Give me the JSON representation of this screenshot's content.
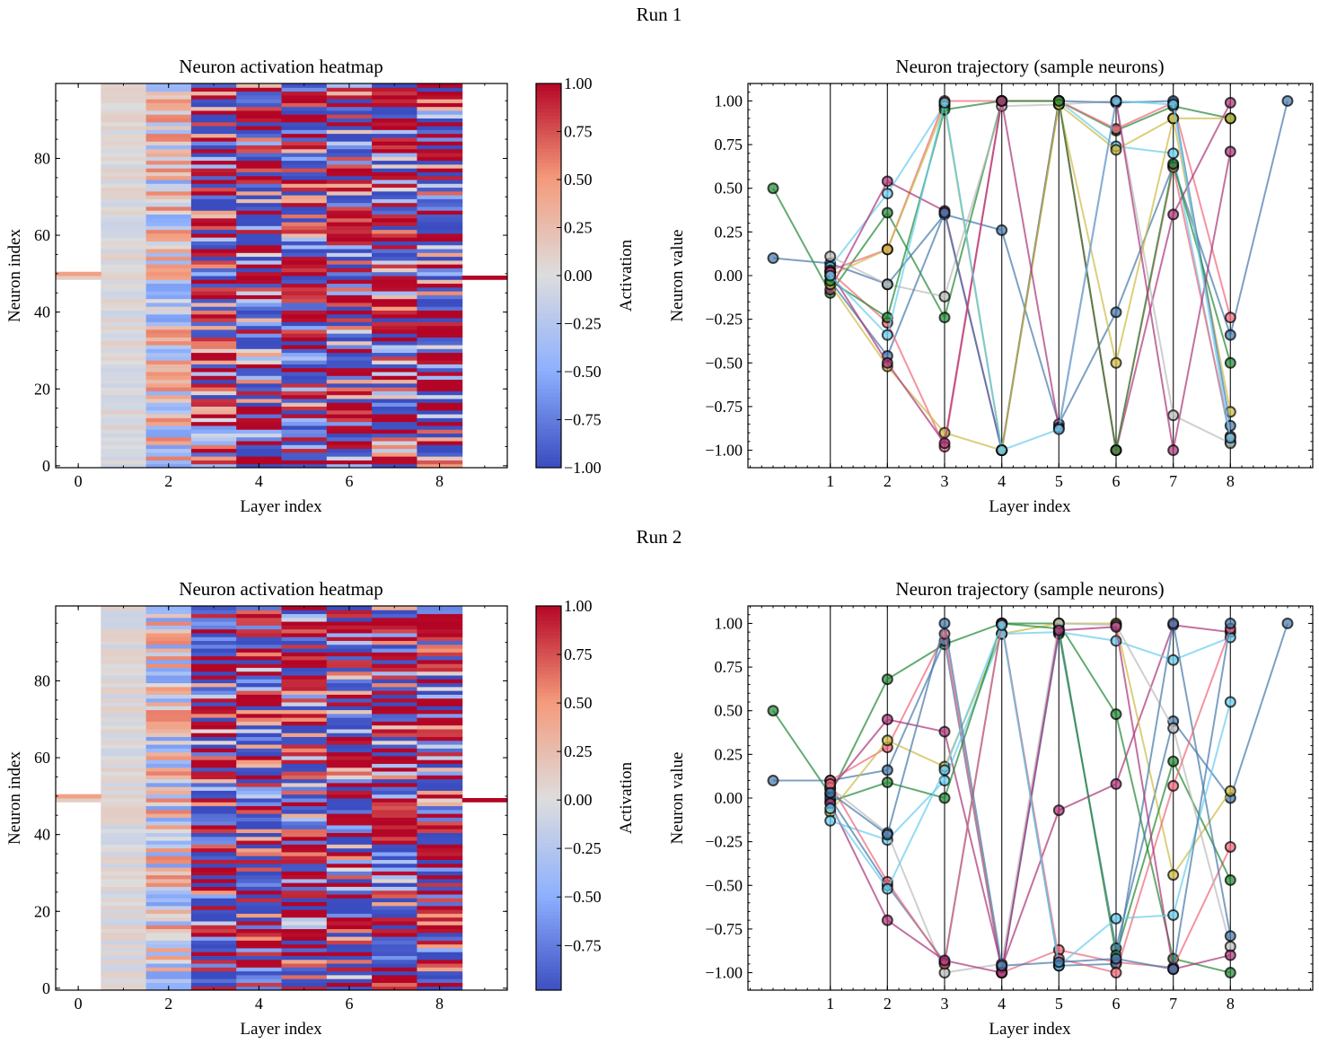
{
  "chart_data": [
    {
      "run_title": "Run 1",
      "heatmap": {
        "type": "heatmap",
        "title": "Neuron activation heatmap",
        "xlabel": "Layer index",
        "ylabel": "Neuron index",
        "colorbar_label": "Activation",
        "colormap": "coolwarm",
        "n_rows": 100,
        "n_cols": 10,
        "xlim": [
          -0.5,
          9.5
        ],
        "ylim": [
          -0.5,
          99.5
        ],
        "xticks": [
          "0",
          "2",
          "4",
          "6",
          "8"
        ],
        "yticks": [
          "0",
          "20",
          "40",
          "60",
          "80"
        ],
        "clim": [
          -1.0,
          1.0
        ],
        "cbar_ticks": [
          "1.00",
          "0.75",
          "0.50",
          "0.25",
          "0.00",
          "−0.25",
          "−0.50",
          "−0.75",
          "−1.00"
        ],
        "cbar_tick_values": [
          1,
          0.75,
          0.5,
          0.25,
          0,
          -0.25,
          -0.5,
          -0.75,
          -1
        ],
        "column_spread": [
          0,
          0.12,
          0.6,
          1,
          1,
          1,
          1,
          1,
          1,
          0
        ],
        "sparse_cells": [
          {
            "col": 0,
            "row": 49,
            "value": 0.12
          },
          {
            "col": 0,
            "row": 50,
            "value": 0.45
          },
          {
            "col": 9,
            "row": 49,
            "value": 1.0
          }
        ],
        "seed": 11
      },
      "trajectory": {
        "type": "line",
        "title": "Neuron trajectory (sample neurons)",
        "xlabel": "Layer index",
        "ylabel": "Neuron value",
        "xlim": [
          -0.44,
          9.44
        ],
        "ylim": [
          -1.1,
          1.1
        ],
        "xticks": [
          "1",
          "2",
          "3",
          "4",
          "5",
          "6",
          "7",
          "8"
        ],
        "yticks": [
          "1.00",
          "0.75",
          "0.50",
          "0.25",
          "0.00",
          "−0.25",
          "−0.50",
          "−0.75",
          "−1.00"
        ],
        "ytick_values": [
          1,
          0.75,
          0.5,
          0.25,
          0,
          -0.25,
          -0.5,
          -0.75,
          -1
        ],
        "vlines": [
          1,
          2,
          3,
          4,
          5,
          6,
          7,
          8
        ],
        "series": [
          {
            "color": "#228833",
            "values": [
              0.5,
              -0.1,
              0.36,
              -0.24,
              1.0,
              1.0,
              0.83,
              0.97,
              0.9,
              null
            ]
          },
          {
            "color": "#4477AA",
            "values": [
              0.1,
              0.07,
              -0.05,
              0.35,
              0.26,
              -0.85,
              -0.21,
              0.63,
              -0.34,
              1.0
            ]
          },
          {
            "color": "#66CCEE",
            "values": [
              null,
              0.05,
              0.47,
              0.98,
              -1.0,
              1.0,
              0.74,
              0.7,
              -0.95,
              null
            ]
          },
          {
            "color": "#EE6677",
            "values": [
              null,
              0.03,
              0.15,
              1.0,
              1.0,
              1.0,
              0.84,
              0.99,
              -0.24,
              null
            ]
          },
          {
            "color": "#CCBB44",
            "values": [
              null,
              0.0,
              0.15,
              0.97,
              -1.0,
              0.98,
              0.72,
              0.9,
              -0.78,
              null
            ]
          },
          {
            "color": "#AA3377",
            "values": [
              null,
              -0.08,
              0.54,
              0.37,
              -1.0,
              1.0,
              -1.0,
              0.35,
              0.99,
              null
            ]
          },
          {
            "color": "#BBBBBB",
            "values": [
              null,
              0.11,
              -0.05,
              -0.12,
              0.97,
              0.98,
              1.0,
              -0.8,
              -0.96,
              null
            ]
          },
          {
            "color": "#4477AA",
            "values": [
              null,
              -0.03,
              -0.46,
              0.36,
              -1.0,
              1.0,
              0.99,
              1.0,
              -0.86,
              null
            ]
          },
          {
            "color": "#EE6677",
            "values": [
              null,
              0.02,
              -0.27,
              -0.98,
              1.0,
              1.0,
              -1.0,
              0.62,
              -0.92,
              null
            ]
          },
          {
            "color": "#CCBB44",
            "values": [
              null,
              -0.05,
              -0.52,
              -0.9,
              -1.0,
              0.98,
              -0.5,
              0.9,
              0.9,
              null
            ]
          },
          {
            "color": "#228833",
            "values": [
              null,
              -0.03,
              -0.24,
              0.95,
              1.0,
              1.0,
              -1.0,
              0.64,
              -0.5,
              null
            ]
          },
          {
            "color": "#AA3377",
            "values": [
              null,
              0.02,
              -0.5,
              -0.96,
              1.0,
              -0.87,
              1.0,
              -1.0,
              0.71,
              null
            ]
          },
          {
            "color": "#66CCEE",
            "values": [
              null,
              0.0,
              -0.34,
              0.99,
              -1.0,
              -0.88,
              1.0,
              0.98,
              -0.93,
              null
            ]
          }
        ]
      }
    },
    {
      "run_title": "Run 2",
      "heatmap": {
        "type": "heatmap",
        "title": "Neuron activation heatmap",
        "xlabel": "Layer index",
        "ylabel": "Neuron index",
        "colorbar_label": "Activation",
        "colormap": "coolwarm",
        "n_rows": 100,
        "n_cols": 10,
        "xlim": [
          -0.5,
          9.5
        ],
        "ylim": [
          -0.5,
          99.5
        ],
        "xticks": [
          "0",
          "2",
          "4",
          "6",
          "8"
        ],
        "yticks": [
          "0",
          "20",
          "40",
          "60",
          "80"
        ],
        "clim": [
          -0.98,
          1.0
        ],
        "cbar_ticks": [
          "1.00",
          "0.75",
          "0.50",
          "0.25",
          "0.00",
          "−0.25",
          "−0.50",
          "−0.75"
        ],
        "cbar_tick_values": [
          1,
          0.75,
          0.5,
          0.25,
          0,
          -0.25,
          -0.5,
          -0.75
        ],
        "column_spread": [
          0,
          0.12,
          0.6,
          1,
          1,
          1,
          1,
          1,
          1,
          0
        ],
        "sparse_cells": [
          {
            "col": 0,
            "row": 49,
            "value": 0.12
          },
          {
            "col": 0,
            "row": 50,
            "value": 0.45
          },
          {
            "col": 9,
            "row": 49,
            "value": 1.0
          }
        ],
        "seed": 29
      },
      "trajectory": {
        "type": "line",
        "title": "Neuron trajectory (sample neurons)",
        "xlabel": "Layer index",
        "ylabel": "Neuron value",
        "xlim": [
          -0.44,
          9.44
        ],
        "ylim": [
          -1.1,
          1.1
        ],
        "xticks": [
          "1",
          "2",
          "3",
          "4",
          "5",
          "6",
          "7",
          "8"
        ],
        "yticks": [
          "1.00",
          "0.75",
          "0.50",
          "0.25",
          "0.00",
          "−0.25",
          "−0.50",
          "−0.75",
          "−1.00"
        ],
        "ytick_values": [
          1,
          0.75,
          0.5,
          0.25,
          0,
          -0.25,
          -0.5,
          -0.75,
          -1
        ],
        "vlines": [
          1,
          2,
          3,
          4,
          5,
          6,
          7,
          8
        ],
        "series": [
          {
            "color": "#228833",
            "values": [
              0.5,
              0.02,
              0.68,
              0.88,
              1.0,
              1.0,
              0.48,
              -0.92,
              -1.0,
              null
            ]
          },
          {
            "color": "#4477AA",
            "values": [
              0.1,
              0.1,
              0.16,
              0.9,
              -1.0,
              0.94,
              -0.86,
              0.44,
              0.0,
              1.0
            ]
          },
          {
            "color": "#EE6677",
            "values": [
              null,
              0.1,
              0.29,
              0.94,
              -1.0,
              -0.87,
              -0.94,
              -0.97,
              -0.28,
              null
            ]
          },
          {
            "color": "#AA3377",
            "values": [
              null,
              0.05,
              0.45,
              0.38,
              -0.97,
              -0.07,
              0.08,
              0.99,
              0.95,
              null
            ]
          },
          {
            "color": "#CCBB44",
            "values": [
              null,
              -0.08,
              0.33,
              0.18,
              0.94,
              1.0,
              1.0,
              -0.44,
              0.04,
              null
            ]
          },
          {
            "color": "#66CCEE",
            "values": [
              null,
              -0.13,
              -0.24,
              0.1,
              0.94,
              0.95,
              0.9,
              0.79,
              0.92,
              null
            ]
          },
          {
            "color": "#228833",
            "values": [
              null,
              -0.02,
              0.09,
              0.0,
              1.0,
              0.97,
              -0.9,
              0.21,
              -0.47,
              null
            ]
          },
          {
            "color": "#BBBBBB",
            "values": [
              null,
              0.06,
              -0.2,
              -1.0,
              -0.95,
              1.0,
              0.99,
              0.4,
              -0.85,
              null
            ]
          },
          {
            "color": "#4477AA",
            "values": [
              null,
              0.0,
              -0.5,
              -0.94,
              1.0,
              -0.96,
              -0.95,
              1.0,
              -0.79,
              null
            ]
          },
          {
            "color": "#EE6677",
            "values": [
              null,
              0.08,
              -0.48,
              -0.95,
              1.0,
              -0.92,
              -1.0,
              0.07,
              0.97,
              null
            ]
          },
          {
            "color": "#AA3377",
            "values": [
              null,
              -0.03,
              -0.7,
              -0.93,
              -1.0,
              0.96,
              0.98,
              -0.98,
              -0.9,
              null
            ]
          },
          {
            "color": "#66CCEE",
            "values": [
              null,
              -0.06,
              -0.52,
              0.16,
              0.99,
              -0.96,
              -0.69,
              -0.67,
              0.55,
              null
            ]
          },
          {
            "color": "#4477AA",
            "values": [
              null,
              0.03,
              -0.21,
              1.0,
              -0.96,
              -0.94,
              -0.92,
              -0.98,
              1.0,
              null
            ]
          }
        ]
      }
    }
  ]
}
